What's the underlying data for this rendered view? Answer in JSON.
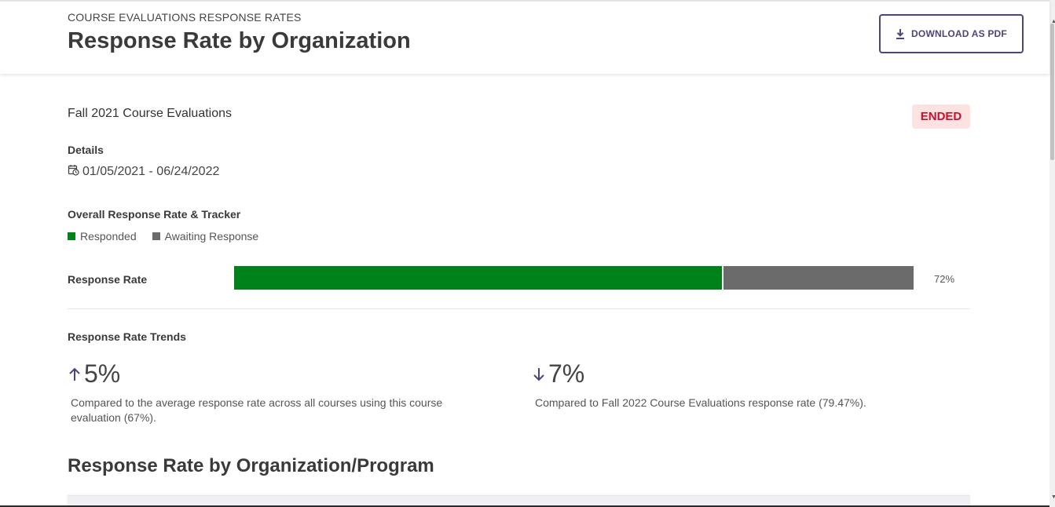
{
  "header": {
    "eyebrow": "COURSE EVALUATIONS RESPONSE RATES",
    "title": "Response Rate by Organization",
    "download_label": "DOWNLOAD AS PDF"
  },
  "evaluation": {
    "name": "Fall 2021 Course Evaluations",
    "status": "ENDED",
    "details_label": "Details",
    "date_range": "01/05/2021 - 06/24/2022"
  },
  "tracker": {
    "label": "Overall Response Rate & Tracker",
    "legend": [
      {
        "label": "Responded",
        "color": "#00821b"
      },
      {
        "label": "Awaiting Response",
        "color": "#6b6b6b"
      }
    ],
    "rate_label": "Response Rate",
    "responded_fraction": 0.72,
    "rate_value": "72%"
  },
  "trends": {
    "label": "Response Rate Trends",
    "items": [
      {
        "direction": "up",
        "value": "5%",
        "description": "Compared to the average response rate across all courses using this course evaluation (67%)."
      },
      {
        "direction": "down",
        "value": "7%",
        "description": "Compared to Fall 2022 Course Evaluations response rate (79.47%)."
      }
    ]
  },
  "section": {
    "title": "Response Rate by Organization/Program"
  },
  "colors": {
    "accent": "#4b4677",
    "responded": "#00821b",
    "awaiting": "#6b6b6b",
    "ended_bg": "#fde2e2",
    "ended_text": "#c8102e"
  }
}
